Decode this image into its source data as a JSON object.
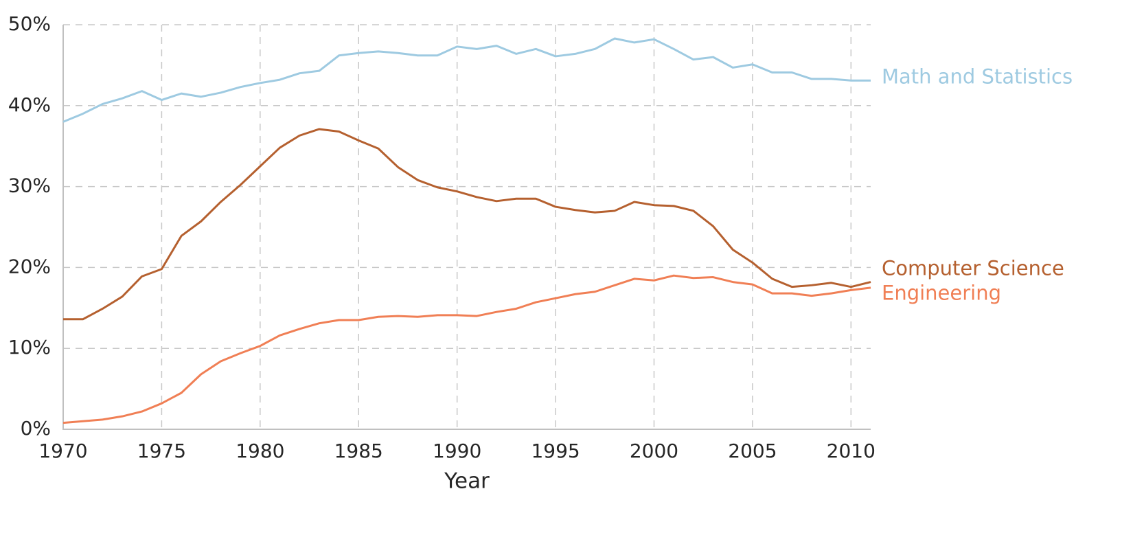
{
  "chart_data": {
    "type": "line",
    "x_label": "Year",
    "x": [
      1970,
      1971,
      1972,
      1973,
      1974,
      1975,
      1976,
      1977,
      1978,
      1979,
      1980,
      1981,
      1982,
      1983,
      1984,
      1985,
      1986,
      1987,
      1988,
      1989,
      1990,
      1991,
      1992,
      1993,
      1994,
      1995,
      1996,
      1997,
      1998,
      1999,
      2000,
      2001,
      2002,
      2003,
      2004,
      2005,
      2006,
      2007,
      2008,
      2009,
      2010,
      2011
    ],
    "series": [
      {
        "name": "Math and Statistics",
        "color": "#9ecae1",
        "values": [
          38.0,
          39.0,
          40.2,
          40.9,
          41.8,
          40.7,
          41.5,
          41.1,
          41.6,
          42.3,
          42.8,
          43.2,
          44.0,
          44.3,
          46.2,
          46.5,
          46.7,
          46.5,
          46.2,
          46.2,
          47.3,
          47.0,
          47.4,
          46.4,
          47.0,
          46.1,
          46.4,
          47.0,
          48.3,
          47.8,
          48.2,
          47.0,
          45.7,
          46.0,
          44.7,
          45.1,
          44.1,
          44.1,
          43.3,
          43.3,
          43.1,
          43.1
        ]
      },
      {
        "name": "Computer Science",
        "color": "#b5602f",
        "values": [
          13.6,
          13.6,
          14.9,
          16.4,
          18.9,
          19.8,
          23.9,
          25.7,
          28.1,
          30.2,
          32.5,
          34.8,
          36.3,
          37.1,
          36.8,
          35.7,
          34.7,
          32.4,
          30.8,
          29.9,
          29.4,
          28.7,
          28.2,
          28.5,
          28.5,
          27.5,
          27.1,
          26.8,
          27.0,
          28.1,
          27.7,
          27.6,
          27.0,
          25.1,
          22.2,
          20.6,
          18.6,
          17.6,
          17.8,
          18.1,
          17.6,
          18.2
        ]
      },
      {
        "name": "Engineering",
        "color": "#f07f55",
        "values": [
          0.8,
          1.0,
          1.2,
          1.6,
          2.2,
          3.2,
          4.5,
          6.8,
          8.4,
          9.4,
          10.3,
          11.6,
          12.4,
          13.1,
          13.5,
          13.5,
          13.9,
          14.0,
          13.9,
          14.1,
          14.1,
          14.0,
          14.5,
          14.9,
          15.7,
          16.2,
          16.7,
          17.0,
          17.8,
          18.6,
          18.4,
          19.0,
          18.7,
          18.8,
          18.2,
          17.9,
          16.8,
          16.8,
          16.5,
          16.8,
          17.2,
          17.5
        ]
      }
    ],
    "xlim": [
      1970,
      2011
    ],
    "xticks": [
      1970,
      1975,
      1980,
      1985,
      1990,
      1995,
      2000,
      2005,
      2010
    ],
    "ylim": [
      0,
      50
    ],
    "yticks": [
      {
        "value": 0,
        "label": "0%"
      },
      {
        "value": 10,
        "label": "10%"
      },
      {
        "value": 20,
        "label": "20%"
      },
      {
        "value": 30,
        "label": "30%"
      },
      {
        "value": 40,
        "label": "40%"
      },
      {
        "value": 50,
        "label": "50%"
      }
    ],
    "grid": true,
    "legend": "line-end"
  }
}
